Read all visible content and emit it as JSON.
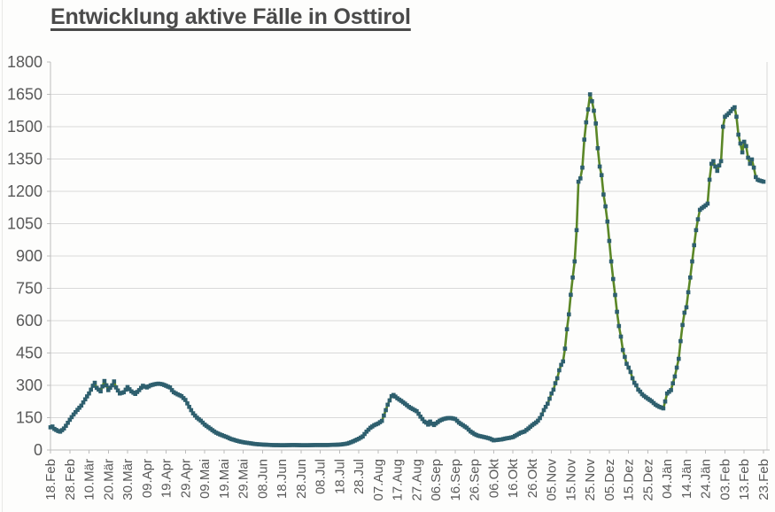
{
  "window": {
    "background": "#fdfdfc"
  },
  "chart_data": {
    "type": "line",
    "title": "Entwicklung aktive Fälle in Osttirol",
    "xlabel": "",
    "ylabel": "",
    "ylim": [
      0,
      1800
    ],
    "y_ticks": [
      0,
      150,
      300,
      450,
      600,
      750,
      900,
      1050,
      1200,
      1350,
      1500,
      1650,
      1800
    ],
    "x_tick_interval_days": 10,
    "x_max_day": 370,
    "x_tick_labels": [
      "18.Feb",
      "28.Feb",
      "10.Mär",
      "20.Mär",
      "30.Mär",
      "09.Apr",
      "19.Apr",
      "29.Apr",
      "09.Mai",
      "19.Mai",
      "29.Mai",
      "08.Jun",
      "18.Jun",
      "28.Jun",
      "08.Jul",
      "18.Jul",
      "28.Jul",
      "07.Aug",
      "17.Aug",
      "27.Aug",
      "06.Sep",
      "16.Sep",
      "26.Sep",
      "06.Okt",
      "16.Okt",
      "26.Okt",
      "05.Nov",
      "15.Nov",
      "25.Nov",
      "05.Dez",
      "15.Dez",
      "25.Dez",
      "04.Jän",
      "14.Jän",
      "24.Jän",
      "03.Feb",
      "13.Feb",
      "23.Feb"
    ],
    "grid": "horizontal-only",
    "legend": "none",
    "axis_label_color": "#595959",
    "title_color": "#4a4a4a",
    "gridline_color": "#d9d9d9",
    "axis_line_color": "#bdbdbd",
    "series": [
      {
        "name": "aktive Fälle",
        "line_color": "#5b8727",
        "marker": "square",
        "marker_color": "#2e5f6e",
        "points_day_value": [
          [
            0,
            105
          ],
          [
            1,
            109
          ],
          [
            2,
            98
          ],
          [
            4,
            88
          ],
          [
            5,
            85
          ],
          [
            6,
            92
          ],
          [
            7,
            100
          ],
          [
            8,
            112
          ],
          [
            10,
            140
          ],
          [
            12,
            165
          ],
          [
            14,
            186
          ],
          [
            16,
            206
          ],
          [
            18,
            235
          ],
          [
            20,
            262
          ],
          [
            22,
            298
          ],
          [
            23,
            312
          ],
          [
            24,
            288
          ],
          [
            26,
            272
          ],
          [
            27,
            295
          ],
          [
            28,
            320
          ],
          [
            29,
            300
          ],
          [
            30,
            278
          ],
          [
            32,
            300
          ],
          [
            33,
            318
          ],
          [
            34,
            290
          ],
          [
            36,
            262
          ],
          [
            38,
            268
          ],
          [
            40,
            292
          ],
          [
            42,
            272
          ],
          [
            44,
            260
          ],
          [
            46,
            278
          ],
          [
            48,
            298
          ],
          [
            50,
            290
          ],
          [
            52,
            300
          ],
          [
            54,
            305
          ],
          [
            56,
            308
          ],
          [
            58,
            305
          ],
          [
            60,
            298
          ],
          [
            62,
            290
          ],
          [
            63,
            278
          ],
          [
            64,
            268
          ],
          [
            66,
            258
          ],
          [
            68,
            250
          ],
          [
            70,
            232
          ],
          [
            72,
            200
          ],
          [
            74,
            170
          ],
          [
            76,
            150
          ],
          [
            78,
            136
          ],
          [
            80,
            118
          ],
          [
            82,
            105
          ],
          [
            84,
            92
          ],
          [
            86,
            80
          ],
          [
            88,
            72
          ],
          [
            90,
            65
          ],
          [
            92,
            58
          ],
          [
            94,
            50
          ],
          [
            96,
            45
          ],
          [
            98,
            40
          ],
          [
            100,
            36
          ],
          [
            103,
            32
          ],
          [
            106,
            28
          ],
          [
            110,
            25
          ],
          [
            115,
            23
          ],
          [
            120,
            22
          ],
          [
            126,
            23
          ],
          [
            132,
            22
          ],
          [
            138,
            23
          ],
          [
            144,
            23
          ],
          [
            150,
            25
          ],
          [
            152,
            27
          ],
          [
            154,
            30
          ],
          [
            156,
            36
          ],
          [
            158,
            44
          ],
          [
            160,
            52
          ],
          [
            162,
            63
          ],
          [
            164,
            85
          ],
          [
            166,
            103
          ],
          [
            168,
            115
          ],
          [
            170,
            123
          ],
          [
            172,
            135
          ],
          [
            173,
            160
          ],
          [
            174,
            185
          ],
          [
            175,
            210
          ],
          [
            176,
            230
          ],
          [
            177,
            250
          ],
          [
            178,
            255
          ],
          [
            179,
            248
          ],
          [
            180,
            240
          ],
          [
            182,
            228
          ],
          [
            184,
            215
          ],
          [
            186,
            200
          ],
          [
            188,
            190
          ],
          [
            190,
            180
          ],
          [
            191,
            168
          ],
          [
            192,
            155
          ],
          [
            193,
            144
          ],
          [
            194,
            132
          ],
          [
            195,
            127
          ],
          [
            196,
            118
          ],
          [
            197,
            132
          ],
          [
            198,
            122
          ],
          [
            199,
            116
          ],
          [
            200,
            123
          ],
          [
            202,
            136
          ],
          [
            204,
            144
          ],
          [
            206,
            148
          ],
          [
            208,
            148
          ],
          [
            210,
            144
          ],
          [
            212,
            127
          ],
          [
            214,
            115
          ],
          [
            216,
            103
          ],
          [
            218,
            86
          ],
          [
            220,
            74
          ],
          [
            222,
            66
          ],
          [
            224,
            62
          ],
          [
            226,
            58
          ],
          [
            228,
            53
          ],
          [
            230,
            45
          ],
          [
            232,
            47
          ],
          [
            234,
            49
          ],
          [
            236,
            53
          ],
          [
            238,
            56
          ],
          [
            240,
            60
          ],
          [
            242,
            70
          ],
          [
            244,
            80
          ],
          [
            246,
            86
          ],
          [
            248,
            100
          ],
          [
            250,
            115
          ],
          [
            252,
            128
          ],
          [
            253,
            136
          ],
          [
            254,
            148
          ],
          [
            255,
            165
          ],
          [
            256,
            185
          ],
          [
            257,
            200
          ],
          [
            258,
            215
          ],
          [
            259,
            238
          ],
          [
            260,
            262
          ],
          [
            261,
            280
          ],
          [
            262,
            310
          ],
          [
            263,
            333
          ],
          [
            264,
            370
          ],
          [
            265,
            395
          ],
          [
            266,
            411
          ],
          [
            267,
            470
          ],
          [
            268,
            560
          ],
          [
            269,
            629
          ],
          [
            270,
            720
          ],
          [
            271,
            800
          ],
          [
            272,
            875
          ],
          [
            273,
            1020
          ],
          [
            274,
            1245
          ],
          [
            275,
            1260
          ],
          [
            276,
            1310
          ],
          [
            277,
            1440
          ],
          [
            278,
            1520
          ],
          [
            279,
            1580
          ],
          [
            280,
            1650
          ],
          [
            281,
            1618
          ],
          [
            282,
            1574
          ],
          [
            283,
            1515
          ],
          [
            284,
            1400
          ],
          [
            285,
            1315
          ],
          [
            286,
            1275
          ],
          [
            287,
            1185
          ],
          [
            288,
            1130
          ],
          [
            289,
            1060
          ],
          [
            290,
            970
          ],
          [
            291,
            875
          ],
          [
            292,
            793
          ],
          [
            293,
            719
          ],
          [
            294,
            641
          ],
          [
            295,
            575
          ],
          [
            296,
            526
          ],
          [
            297,
            464
          ],
          [
            298,
            432
          ],
          [
            299,
            400
          ],
          [
            300,
            382
          ],
          [
            301,
            362
          ],
          [
            302,
            333
          ],
          [
            303,
            312
          ],
          [
            304,
            300
          ],
          [
            305,
            280
          ],
          [
            306,
            271
          ],
          [
            307,
            259
          ],
          [
            308,
            251
          ],
          [
            310,
            238
          ],
          [
            312,
            226
          ],
          [
            314,
            210
          ],
          [
            316,
            200
          ],
          [
            317,
            197
          ],
          [
            318,
            193
          ],
          [
            319,
            225
          ],
          [
            320,
            262
          ],
          [
            322,
            278
          ],
          [
            324,
            341
          ],
          [
            325,
            382
          ],
          [
            326,
            423
          ],
          [
            327,
            505
          ],
          [
            328,
            580
          ],
          [
            329,
            637
          ],
          [
            330,
            662
          ],
          [
            331,
            732
          ],
          [
            332,
            800
          ],
          [
            333,
            875
          ],
          [
            334,
            950
          ],
          [
            335,
            1020
          ],
          [
            336,
            1070
          ],
          [
            337,
            1114
          ],
          [
            338,
            1122
          ],
          [
            340,
            1135
          ],
          [
            341,
            1143
          ],
          [
            342,
            1254
          ],
          [
            343,
            1328
          ],
          [
            344,
            1340
          ],
          [
            345,
            1315
          ],
          [
            346,
            1295
          ],
          [
            347,
            1320
          ],
          [
            348,
            1340
          ],
          [
            349,
            1500
          ],
          [
            350,
            1546
          ],
          [
            352,
            1562
          ],
          [
            354,
            1582
          ],
          [
            355,
            1590
          ],
          [
            356,
            1546
          ],
          [
            357,
            1463
          ],
          [
            358,
            1422
          ],
          [
            359,
            1381
          ],
          [
            360,
            1430
          ],
          [
            361,
            1410
          ],
          [
            362,
            1356
          ],
          [
            363,
            1328
          ],
          [
            364,
            1348
          ],
          [
            365,
            1310
          ],
          [
            366,
            1266
          ],
          [
            367,
            1254
          ],
          [
            368,
            1250
          ],
          [
            370,
            1245
          ]
        ]
      }
    ]
  }
}
